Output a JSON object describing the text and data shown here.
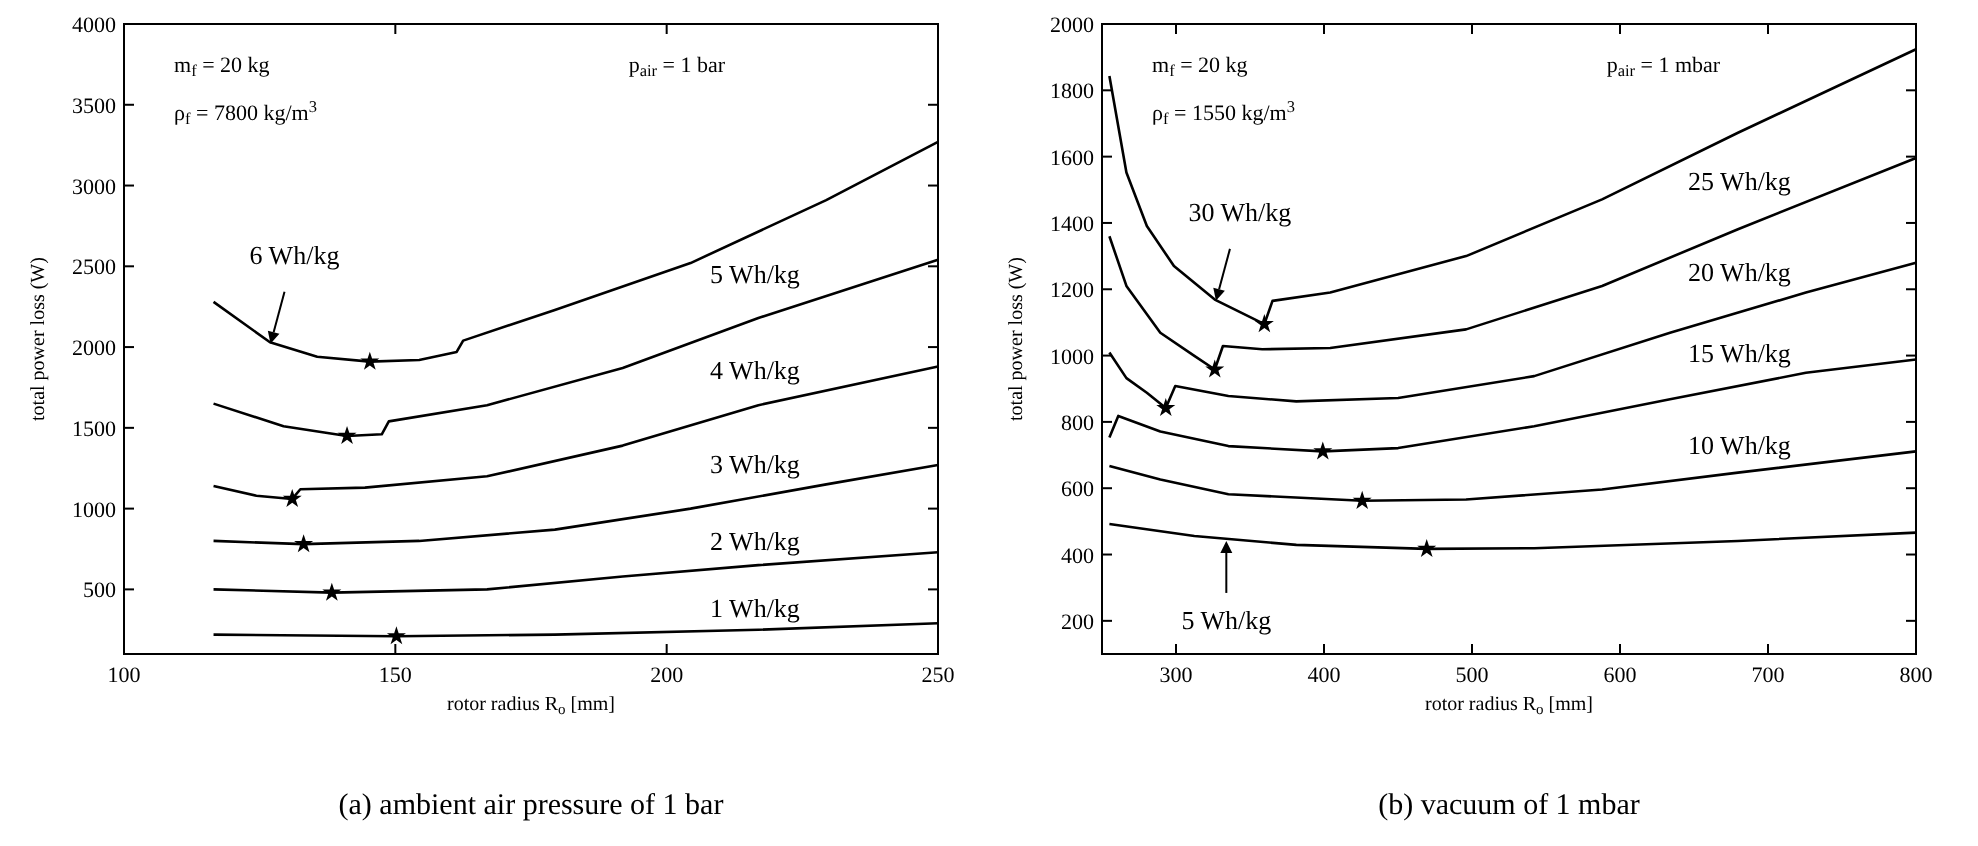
{
  "chart_data": [
    {
      "type": "line",
      "title": "(a) ambient air pressure of 1 bar",
      "xlabel": "rotor radius R$_{o}$ [mm]",
      "ylabel": "total power loss (W)",
      "xlim": [
        100,
        250
      ],
      "xticks": [
        100,
        150,
        200,
        250
      ],
      "ylim": [
        100,
        4000
      ],
      "yticks": [
        500,
        1000,
        1500,
        2000,
        2500,
        3000,
        3500,
        4000
      ],
      "annotations": [
        "m$_{f}$ = 20 kg",
        "ρ$_{f}$ = 7800 kg/m$^{3}$",
        "p$_{air}$ = 1 bar",
        {
          "text": "6 Wh/kg",
          "x": 127,
          "y": 2020
        }
      ],
      "series": [
        {
          "color": "#000000",
          "x": [
            116.5,
            126.9,
            135.6,
            145.3,
            154.4,
            161.3,
            162.5,
            179.4,
            204.4,
            229.4,
            250
          ],
          "values": [
            2280,
            2030,
            1940,
            1910,
            1920,
            1970,
            2040,
            2230,
            2520,
            2910,
            3270
          ]
        },
        {
          "name": "5 Wh/kg",
          "color": "#000000",
          "x": [
            116.5,
            129.4,
            141.1,
            147.5,
            148.8,
            166.9,
            191.9,
            216.9,
            250
          ],
          "values": [
            1650,
            1510,
            1450,
            1460,
            1540,
            1640,
            1870,
            2180,
            2540
          ]
        },
        {
          "name": "4 Wh/kg",
          "color": "#000000",
          "x": [
            116.5,
            124.4,
            131,
            132.5,
            144.4,
            166.9,
            191.9,
            216.9,
            250
          ],
          "values": [
            1140,
            1080,
            1060,
            1120,
            1130,
            1200,
            1390,
            1640,
            1880
          ]
        },
        {
          "name": "3 Wh/kg",
          "color": "#000000",
          "x": [
            116.5,
            133.1,
            154.4,
            179.4,
            204.4,
            229.4,
            250
          ],
          "values": [
            800,
            780,
            800,
            870,
            1000,
            1150,
            1270
          ]
        },
        {
          "name": "2 Wh/kg",
          "color": "#000000",
          "x": [
            116.5,
            138.3,
            166.9,
            191.9,
            216.9,
            250
          ],
          "values": [
            500,
            480,
            500,
            580,
            650,
            730
          ]
        },
        {
          "name": "1 Wh/kg",
          "color": "#000000",
          "x": [
            116.5,
            150.2,
            179.4,
            216.9,
            250
          ],
          "values": [
            220,
            210,
            220,
            250,
            290
          ]
        },
        {
          "type": "scatter",
          "marker": "star",
          "color": "#000000",
          "x": [
            145.3,
            141.1,
            131,
            133.1,
            138.3,
            150.2
          ],
          "values": [
            1910,
            1450,
            1060,
            780,
            480,
            210
          ]
        }
      ]
    },
    {
      "type": "line",
      "title": "(b) vacuum of 1 mbar",
      "xlabel": "rotor radius R$_{o}$ [mm]",
      "ylabel": "total power loss (W)",
      "xlim": [
        250,
        800
      ],
      "xticks": [
        300,
        400,
        500,
        600,
        700,
        800
      ],
      "ylim": [
        100,
        2000
      ],
      "yticks": [
        200,
        400,
        600,
        800,
        1000,
        1200,
        1400,
        1600,
        1800,
        2000
      ],
      "annotations": [
        "m$_{f}$ = 20 kg",
        "ρ$_{f}$ = 1550 kg/m$^{3}$",
        "p$_{air}$ = 1 mbar",
        {
          "text": "30 Wh/kg",
          "x": 327,
          "y": 1165
        },
        {
          "text": "5 Wh/kg",
          "x": 334,
          "y": 441
        }
      ],
      "series": [
        {
          "color": "#000000",
          "x": [
            255,
            266.5,
            280.3,
            298.6,
            326.2,
            359.7,
            365.2,
            404.2,
            496,
            587.9,
            679.7,
            800
          ],
          "values": [
            1843,
            1552,
            1391,
            1270,
            1169,
            1095,
            1165,
            1190,
            1300,
            1471,
            1672,
            1924
          ]
        },
        {
          "name": "25 Wh/kg",
          "color": "#000000",
          "x": [
            255,
            266.5,
            289.4,
            312.4,
            326.2,
            331.7,
            358.3,
            404.2,
            496,
            587.9,
            679.7,
            800
          ],
          "values": [
            1360,
            1210,
            1069,
            999,
            958,
            1029,
            1019,
            1023,
            1079,
            1210,
            1381,
            1596
          ]
        },
        {
          "name": "20 Wh/kg",
          "color": "#000000",
          "x": [
            255,
            266.5,
            280.3,
            293.1,
            299.5,
            335.4,
            381.3,
            450.1,
            542,
            633.8,
            725.6,
            800
          ],
          "values": [
            1009,
            932,
            888,
            842,
            908,
            878,
            862,
            872,
            938,
            1069,
            1190,
            1280
          ]
        },
        {
          "name": "15 Wh/kg",
          "color": "#000000",
          "x": [
            255,
            261,
            289.4,
            335.4,
            399.2,
            450.1,
            542,
            633.8,
            725.6,
            800
          ],
          "values": [
            753,
            818,
            771,
            727,
            711,
            721,
            787,
            868,
            948,
            988
          ]
        },
        {
          "name": "10 Wh/kg",
          "color": "#000000",
          "x": [
            255,
            289.4,
            335.4,
            425.8,
            496,
            587.9,
            679.7,
            800
          ],
          "values": [
            667,
            626,
            582,
            562,
            566,
            596,
            647,
            711
          ]
        },
        {
          "color": "#000000",
          "x": [
            255,
            312.4,
            381.3,
            469.4,
            542,
            679.7,
            800
          ],
          "values": [
            492,
            456,
            429,
            417,
            419,
            441,
            466
          ]
        },
        {
          "type": "scatter",
          "marker": "star",
          "color": "#000000",
          "x": [
            359.7,
            326.2,
            293.1,
            399.2,
            425.8,
            469.4
          ],
          "values": [
            1095,
            958,
            842,
            711,
            562,
            417
          ]
        }
      ]
    }
  ]
}
